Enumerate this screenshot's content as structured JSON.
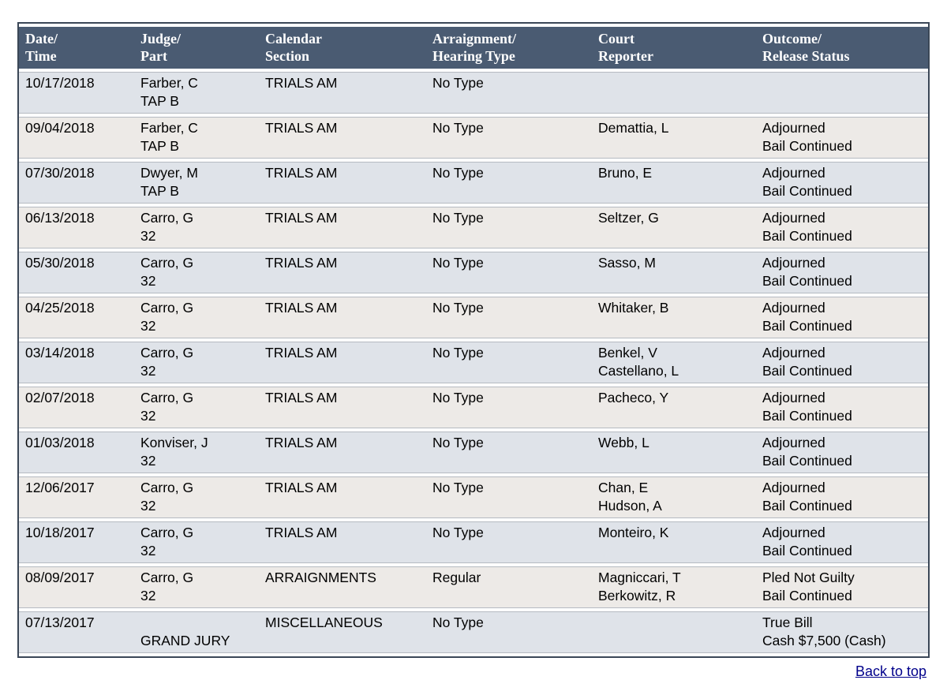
{
  "colors": {
    "header_bg": "#4a5b72",
    "header_text": "#ffffff",
    "row_odd_bg": "#dfe3e9",
    "row_even_bg": "#edeae7",
    "table_border": "#3b4757",
    "row_divider": "#b5bac1",
    "link_color": "#00008b",
    "body_text": "#000000",
    "page_bg": "#ffffff"
  },
  "table": {
    "columns": [
      {
        "id": "date_time",
        "label": "Date/\nTime"
      },
      {
        "id": "judge_part",
        "label": "Judge/\nPart"
      },
      {
        "id": "calendar_section",
        "label": "Calendar\nSection"
      },
      {
        "id": "hearing_type",
        "label": "Arraignment/\nHearing Type"
      },
      {
        "id": "court_reporter",
        "label": "Court\nReporter"
      },
      {
        "id": "outcome",
        "label": "Outcome/\nRelease Status"
      }
    ],
    "rows": [
      {
        "date_time": [
          "10/17/2018"
        ],
        "judge_part": [
          "Farber, C",
          "TAP B"
        ],
        "calendar_section": [
          "TRIALS AM"
        ],
        "hearing_type": [
          "No Type"
        ],
        "court_reporter": [],
        "outcome": []
      },
      {
        "date_time": [
          "09/04/2018"
        ],
        "judge_part": [
          "Farber, C",
          "TAP B"
        ],
        "calendar_section": [
          "TRIALS AM"
        ],
        "hearing_type": [
          "No Type"
        ],
        "court_reporter": [
          "Demattia, L"
        ],
        "outcome": [
          "Adjourned",
          "Bail Continued"
        ]
      },
      {
        "date_time": [
          "07/30/2018"
        ],
        "judge_part": [
          "Dwyer, M",
          "TAP B"
        ],
        "calendar_section": [
          "TRIALS AM"
        ],
        "hearing_type": [
          "No Type"
        ],
        "court_reporter": [
          "Bruno, E"
        ],
        "outcome": [
          "Adjourned",
          "Bail Continued"
        ]
      },
      {
        "date_time": [
          "06/13/2018"
        ],
        "judge_part": [
          "Carro, G",
          "32"
        ],
        "calendar_section": [
          "TRIALS AM"
        ],
        "hearing_type": [
          "No Type"
        ],
        "court_reporter": [
          "Seltzer, G"
        ],
        "outcome": [
          "Adjourned",
          "Bail Continued"
        ]
      },
      {
        "date_time": [
          "05/30/2018"
        ],
        "judge_part": [
          "Carro, G",
          "32"
        ],
        "calendar_section": [
          "TRIALS AM"
        ],
        "hearing_type": [
          "No Type"
        ],
        "court_reporter": [
          "Sasso, M"
        ],
        "outcome": [
          "Adjourned",
          "Bail Continued"
        ]
      },
      {
        "date_time": [
          "04/25/2018"
        ],
        "judge_part": [
          "Carro, G",
          "32"
        ],
        "calendar_section": [
          "TRIALS AM"
        ],
        "hearing_type": [
          "No Type"
        ],
        "court_reporter": [
          "Whitaker, B"
        ],
        "outcome": [
          "Adjourned",
          "Bail Continued"
        ]
      },
      {
        "date_time": [
          "03/14/2018"
        ],
        "judge_part": [
          "Carro, G",
          "32"
        ],
        "calendar_section": [
          "TRIALS AM"
        ],
        "hearing_type": [
          "No Type"
        ],
        "court_reporter": [
          "Benkel, V",
          "Castellano, L"
        ],
        "outcome": [
          "Adjourned",
          "Bail Continued"
        ]
      },
      {
        "date_time": [
          "02/07/2018"
        ],
        "judge_part": [
          "Carro, G",
          "32"
        ],
        "calendar_section": [
          "TRIALS AM"
        ],
        "hearing_type": [
          "No Type"
        ],
        "court_reporter": [
          "Pacheco, Y"
        ],
        "outcome": [
          "Adjourned",
          "Bail Continued"
        ]
      },
      {
        "date_time": [
          "01/03/2018"
        ],
        "judge_part": [
          "Konviser, J",
          "32"
        ],
        "calendar_section": [
          "TRIALS AM"
        ],
        "hearing_type": [
          "No Type"
        ],
        "court_reporter": [
          "Webb, L"
        ],
        "outcome": [
          "Adjourned",
          "Bail Continued"
        ]
      },
      {
        "date_time": [
          "12/06/2017"
        ],
        "judge_part": [
          "Carro, G",
          "32"
        ],
        "calendar_section": [
          "TRIALS AM"
        ],
        "hearing_type": [
          "No Type"
        ],
        "court_reporter": [
          "Chan, E",
          "Hudson, A"
        ],
        "outcome": [
          "Adjourned",
          "Bail Continued"
        ]
      },
      {
        "date_time": [
          "10/18/2017"
        ],
        "judge_part": [
          "Carro, G",
          "32"
        ],
        "calendar_section": [
          "TRIALS AM"
        ],
        "hearing_type": [
          "No Type"
        ],
        "court_reporter": [
          "Monteiro, K"
        ],
        "outcome": [
          "Adjourned",
          "Bail Continued"
        ]
      },
      {
        "date_time": [
          "08/09/2017"
        ],
        "judge_part": [
          "Carro, G",
          "32"
        ],
        "calendar_section": [
          "ARRAIGNMENTS"
        ],
        "hearing_type": [
          "Regular"
        ],
        "court_reporter": [
          "Magniccari, T",
          "Berkowitz, R"
        ],
        "outcome": [
          "Pled Not Guilty",
          "Bail Continued"
        ]
      },
      {
        "date_time": [
          "07/13/2017"
        ],
        "judge_part": [
          "",
          "GRAND JURY"
        ],
        "calendar_section": [
          "MISCELLANEOUS"
        ],
        "hearing_type": [
          "No Type"
        ],
        "court_reporter": [],
        "outcome": [
          "True Bill",
          "Cash $7,500 (Cash)"
        ]
      }
    ]
  },
  "footer": {
    "back_to_top": "Back to top"
  }
}
